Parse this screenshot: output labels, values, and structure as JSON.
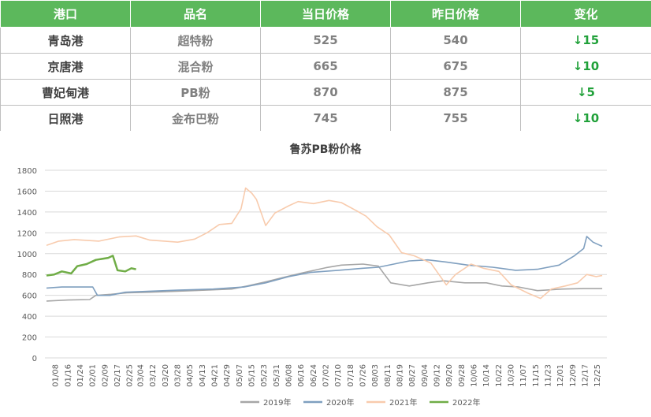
{
  "table": {
    "headers": [
      "港口",
      "品名",
      "当日价格",
      "昨日价格",
      "变化"
    ],
    "rows": [
      {
        "port": "青岛港",
        "product": "超特粉",
        "today": "525",
        "yesterday": "540",
        "change": "↓15"
      },
      {
        "port": "京唐港",
        "product": "混合粉",
        "today": "665",
        "yesterday": "675",
        "change": "↓10"
      },
      {
        "port": "曹妃甸港",
        "product": "PB粉",
        "today": "870",
        "yesterday": "875",
        "change": "↓5"
      },
      {
        "port": "日照港",
        "product": "金布巴粉",
        "today": "745",
        "yesterday": "755",
        "change": "↓10"
      }
    ]
  },
  "chart_data": {
    "type": "line",
    "title": "鲁苏PB粉价格",
    "ylim": [
      0,
      1800
    ],
    "yticks": [
      0,
      200,
      400,
      600,
      800,
      1000,
      1200,
      1400,
      1600,
      1800
    ],
    "xticks": [
      "01/08",
      "01/16",
      "01/24",
      "02/01",
      "02/09",
      "02/17",
      "02/25",
      "03/04",
      "03/12",
      "03/20",
      "03/28",
      "04/05",
      "04/13",
      "04/21",
      "04/29",
      "05/07",
      "05/15",
      "05/23",
      "05/31",
      "06/08",
      "06/16",
      "06/24",
      "07/02",
      "07/10",
      "07/18",
      "07/26",
      "08/03",
      "08/11",
      "08/19",
      "08/27",
      "09/04",
      "09/12",
      "09/20",
      "09/28",
      "10/06",
      "10/14",
      "10/22",
      "10/30",
      "11/07",
      "11/15",
      "11/23",
      "12/01",
      "12/09",
      "12/17",
      "12/25"
    ],
    "legend_position": "bottom",
    "grid": "horizontal",
    "series": [
      {
        "name": "2019年",
        "color": "#a6a6a6",
        "points": [
          [
            "01/02",
            545
          ],
          [
            "01/16",
            555
          ],
          [
            "01/30",
            560
          ],
          [
            "02/03",
            600
          ],
          [
            "02/13",
            610
          ],
          [
            "02/23",
            625
          ],
          [
            "03/10",
            630
          ],
          [
            "03/28",
            640
          ],
          [
            "04/15",
            650
          ],
          [
            "05/02",
            660
          ],
          [
            "05/12",
            690
          ],
          [
            "05/24",
            730
          ],
          [
            "06/04",
            770
          ],
          [
            "06/18",
            820
          ],
          [
            "07/02",
            865
          ],
          [
            "07/12",
            890
          ],
          [
            "07/26",
            900
          ],
          [
            "08/05",
            880
          ],
          [
            "08/09",
            800
          ],
          [
            "08/13",
            720
          ],
          [
            "08/25",
            690
          ],
          [
            "09/06",
            720
          ],
          [
            "09/16",
            740
          ],
          [
            "09/30",
            720
          ],
          [
            "10/14",
            720
          ],
          [
            "10/24",
            690
          ],
          [
            "11/04",
            680
          ],
          [
            "11/16",
            645
          ],
          [
            "12/02",
            660
          ],
          [
            "12/16",
            665
          ],
          [
            "12/28",
            665
          ]
        ]
      },
      {
        "name": "2020年",
        "color": "#7f9fbf",
        "points": [
          [
            "01/02",
            670
          ],
          [
            "01/12",
            680
          ],
          [
            "01/24",
            680
          ],
          [
            "02/01",
            680
          ],
          [
            "02/04",
            600
          ],
          [
            "02/12",
            600
          ],
          [
            "02/22",
            630
          ],
          [
            "03/10",
            640
          ],
          [
            "03/28",
            650
          ],
          [
            "04/20",
            660
          ],
          [
            "05/10",
            680
          ],
          [
            "05/24",
            720
          ],
          [
            "06/08",
            780
          ],
          [
            "06/22",
            820
          ],
          [
            "07/10",
            840
          ],
          [
            "07/26",
            860
          ],
          [
            "08/05",
            870
          ],
          [
            "08/15",
            900
          ],
          [
            "08/25",
            930
          ],
          [
            "09/06",
            940
          ],
          [
            "09/18",
            920
          ],
          [
            "10/02",
            890
          ],
          [
            "10/18",
            870
          ],
          [
            "11/02",
            840
          ],
          [
            "11/16",
            850
          ],
          [
            "11/30",
            890
          ],
          [
            "12/10",
            980
          ],
          [
            "12/16",
            1050
          ],
          [
            "12/18",
            1165
          ],
          [
            "12/22",
            1110
          ],
          [
            "12/28",
            1070
          ]
        ]
      },
      {
        "name": "2021年",
        "color": "#f8cbad",
        "points": [
          [
            "01/02",
            1080
          ],
          [
            "01/10",
            1120
          ],
          [
            "01/20",
            1135
          ],
          [
            "02/05",
            1120
          ],
          [
            "02/18",
            1160
          ],
          [
            "03/01",
            1170
          ],
          [
            "03/10",
            1130
          ],
          [
            "03/28",
            1110
          ],
          [
            "04/08",
            1140
          ],
          [
            "04/16",
            1200
          ],
          [
            "04/24",
            1280
          ],
          [
            "05/02",
            1290
          ],
          [
            "05/08",
            1430
          ],
          [
            "05/11",
            1630
          ],
          [
            "05/15",
            1580
          ],
          [
            "05/18",
            1520
          ],
          [
            "05/24",
            1270
          ],
          [
            "05/30",
            1390
          ],
          [
            "06/08",
            1460
          ],
          [
            "06/14",
            1500
          ],
          [
            "06/24",
            1480
          ],
          [
            "07/04",
            1510
          ],
          [
            "07/12",
            1490
          ],
          [
            "07/22",
            1410
          ],
          [
            "07/28",
            1360
          ],
          [
            "08/04",
            1260
          ],
          [
            "08/12",
            1180
          ],
          [
            "08/20",
            1010
          ],
          [
            "08/28",
            980
          ],
          [
            "09/08",
            910
          ],
          [
            "09/18",
            700
          ],
          [
            "09/24",
            800
          ],
          [
            "10/04",
            900
          ],
          [
            "10/12",
            860
          ],
          [
            "10/22",
            830
          ],
          [
            "10/30",
            700
          ],
          [
            "11/10",
            620
          ],
          [
            "11/18",
            570
          ],
          [
            "11/25",
            660
          ],
          [
            "12/04",
            690
          ],
          [
            "12/12",
            720
          ],
          [
            "12/18",
            800
          ],
          [
            "12/24",
            780
          ],
          [
            "12/28",
            790
          ]
        ]
      },
      {
        "name": "2022年",
        "color": "#70ad47",
        "points": [
          [
            "01/02",
            790
          ],
          [
            "01/07",
            800
          ],
          [
            "01/12",
            830
          ],
          [
            "01/18",
            810
          ],
          [
            "01/22",
            880
          ],
          [
            "01/28",
            900
          ],
          [
            "02/03",
            940
          ],
          [
            "02/11",
            960
          ],
          [
            "02/14",
            980
          ],
          [
            "02/17",
            840
          ],
          [
            "02/22",
            830
          ],
          [
            "02/26",
            860
          ],
          [
            "03/01",
            850
          ]
        ]
      }
    ]
  }
}
